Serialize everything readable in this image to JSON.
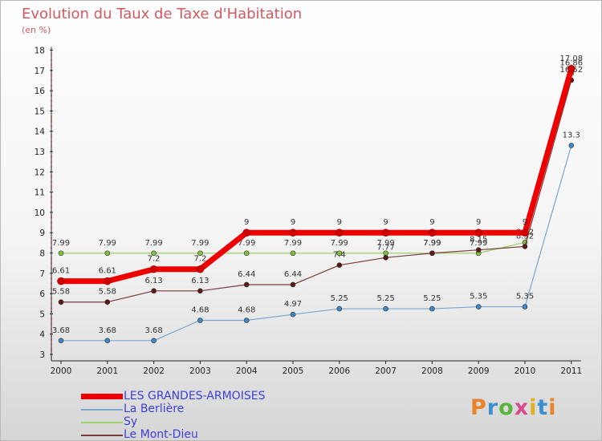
{
  "header": {
    "title": "Evolution du Taux de Taxe d'Habitation",
    "unit": "(en %)"
  },
  "logo": {
    "text": "Proxiti",
    "colors": [
      "#e8832a",
      "#3a8fd0",
      "#5ab540",
      "#d84a8a",
      "#e0b020",
      "#3a8fd0",
      "#e8832a"
    ]
  },
  "chart_data": {
    "type": "line",
    "x": [
      "2000",
      "2001",
      "2002",
      "2003",
      "2004",
      "2005",
      "2006",
      "2007",
      "2008",
      "2009",
      "2010",
      "2011"
    ],
    "ylim": [
      3,
      18
    ],
    "yticks": [
      3,
      4,
      5,
      6,
      7,
      8,
      9,
      10,
      11,
      12,
      13,
      14,
      15,
      16,
      17,
      18
    ],
    "grid": false,
    "legend_position": "bottom-left",
    "series": [
      {
        "name": "Sy",
        "color": "#9ed16a",
        "marker": "#7cc33c",
        "width": 1.2,
        "values": [
          7.99,
          7.99,
          7.99,
          7.99,
          7.99,
          7.99,
          7.99,
          7.99,
          7.99,
          7.99,
          8.52,
          16.86
        ],
        "labels": [
          "7.99",
          "7.99",
          "7.99",
          "7.99",
          "7.99",
          "7.99",
          "7.99",
          "7.99",
          "7.99",
          "7.99",
          "8.52",
          "16.86"
        ]
      },
      {
        "name": "Le Mont-Dieu",
        "color": "#7a3a3a",
        "marker": "#5e1616",
        "width": 1.2,
        "values": [
          5.58,
          5.58,
          6.13,
          6.13,
          6.44,
          6.44,
          7.4,
          7.77,
          7.99,
          8.15,
          8.32,
          16.52
        ],
        "labels": [
          "5.58",
          "5.58",
          "6.13",
          "6.13",
          "6.44",
          "6.44",
          "7.4",
          "7.77",
          "7.99",
          "8.15",
          "8.32",
          "16.52"
        ]
      },
      {
        "name": "La Berlière",
        "color": "#7aa6d0",
        "marker": "#3e86c6",
        "width": 1.2,
        "values": [
          3.68,
          3.68,
          3.68,
          4.68,
          4.68,
          4.97,
          5.25,
          5.25,
          5.25,
          5.35,
          5.35,
          13.3
        ],
        "labels": [
          "3.68",
          "3.68",
          "3.68",
          "4.68",
          "4.68",
          "4.97",
          "5.25",
          "5.25",
          "5.25",
          "5.35",
          "5.35",
          "13.3"
        ]
      },
      {
        "name": "LES GRANDES-ARMOISES",
        "color": "#ee0000",
        "marker": "#cc0000",
        "width": 7,
        "values": [
          6.61,
          6.61,
          7.2,
          7.2,
          9,
          9,
          9,
          9,
          9,
          9,
          9,
          17.08
        ],
        "labels": [
          "6.61",
          "6.61",
          "7.2",
          "7.2",
          "9",
          "9",
          "9",
          "9",
          "9",
          "9",
          "9",
          "17.08"
        ]
      }
    ],
    "legend_order": [
      "LES GRANDES-ARMOISES",
      "La Berlière",
      "Sy",
      "Le Mont-Dieu"
    ]
  }
}
